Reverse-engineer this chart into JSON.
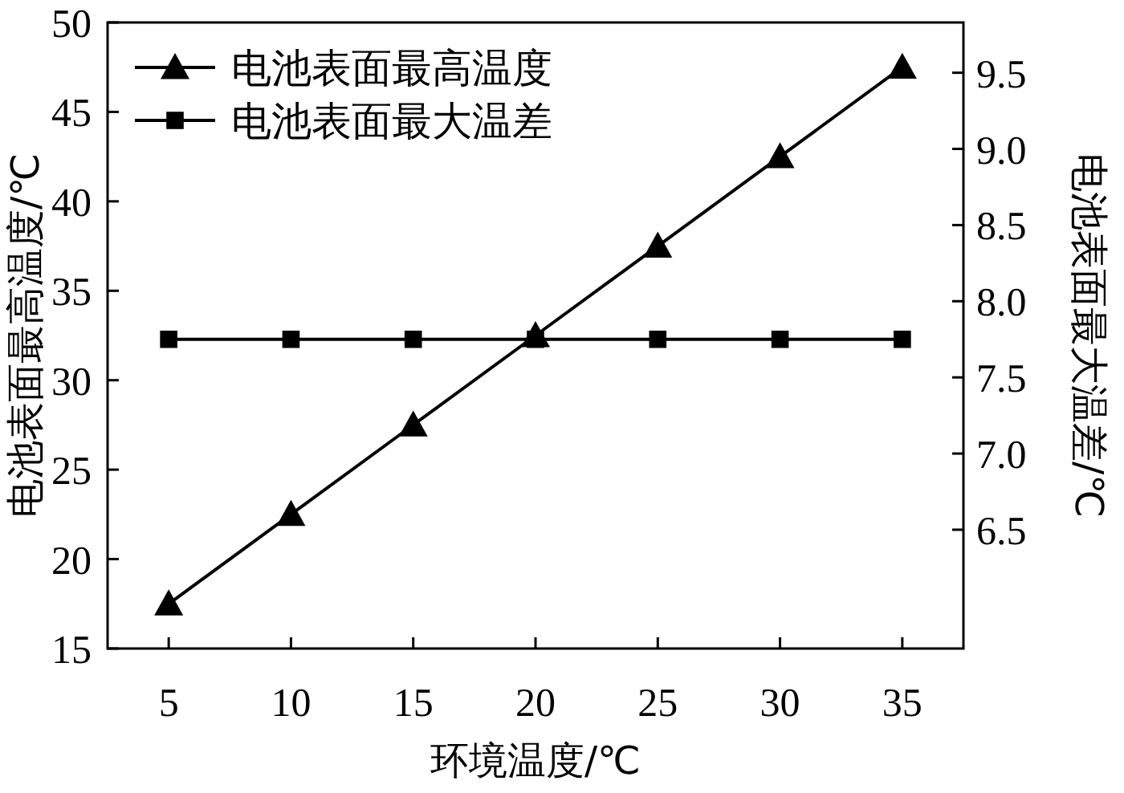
{
  "chart_data": {
    "type": "line",
    "xlabel": "环境温度/℃",
    "ylabel": "电池表面最高温度/℃",
    "y2label": "电池表面最大温差/℃",
    "x": [
      5,
      10,
      15,
      20,
      25,
      30,
      35
    ],
    "xlim": [
      2.5,
      37.5
    ],
    "xticks": [
      5,
      10,
      15,
      20,
      25,
      30,
      35
    ],
    "ylim": [
      15,
      50
    ],
    "yticks": [
      15,
      20,
      25,
      30,
      35,
      40,
      45,
      50
    ],
    "y2lim": [
      5.72,
      9.83
    ],
    "y2ticks": [
      6.5,
      {
        "value": 7,
        "label": "7.0"
      },
      7.5,
      {
        "value": 8,
        "label": "8.0"
      },
      8.5,
      {
        "value": 9,
        "label": "9.0"
      },
      9.5
    ],
    "legend": "top left",
    "grid": false,
    "line_style": "solid",
    "series": [
      {
        "name": "电池表面最高温度",
        "color": "#000000",
        "marker": "triangle",
        "values": [
          17.5,
          22.5,
          27.5,
          32.5,
          37.5,
          42.5,
          47.5
        ]
      },
      {
        "name": "电池表面最大温差",
        "color": "#000000",
        "marker": "square",
        "axis": "y2",
        "values": [
          7.75,
          7.75,
          7.75,
          7.75,
          7.75,
          7.75,
          7.75
        ]
      }
    ]
  }
}
